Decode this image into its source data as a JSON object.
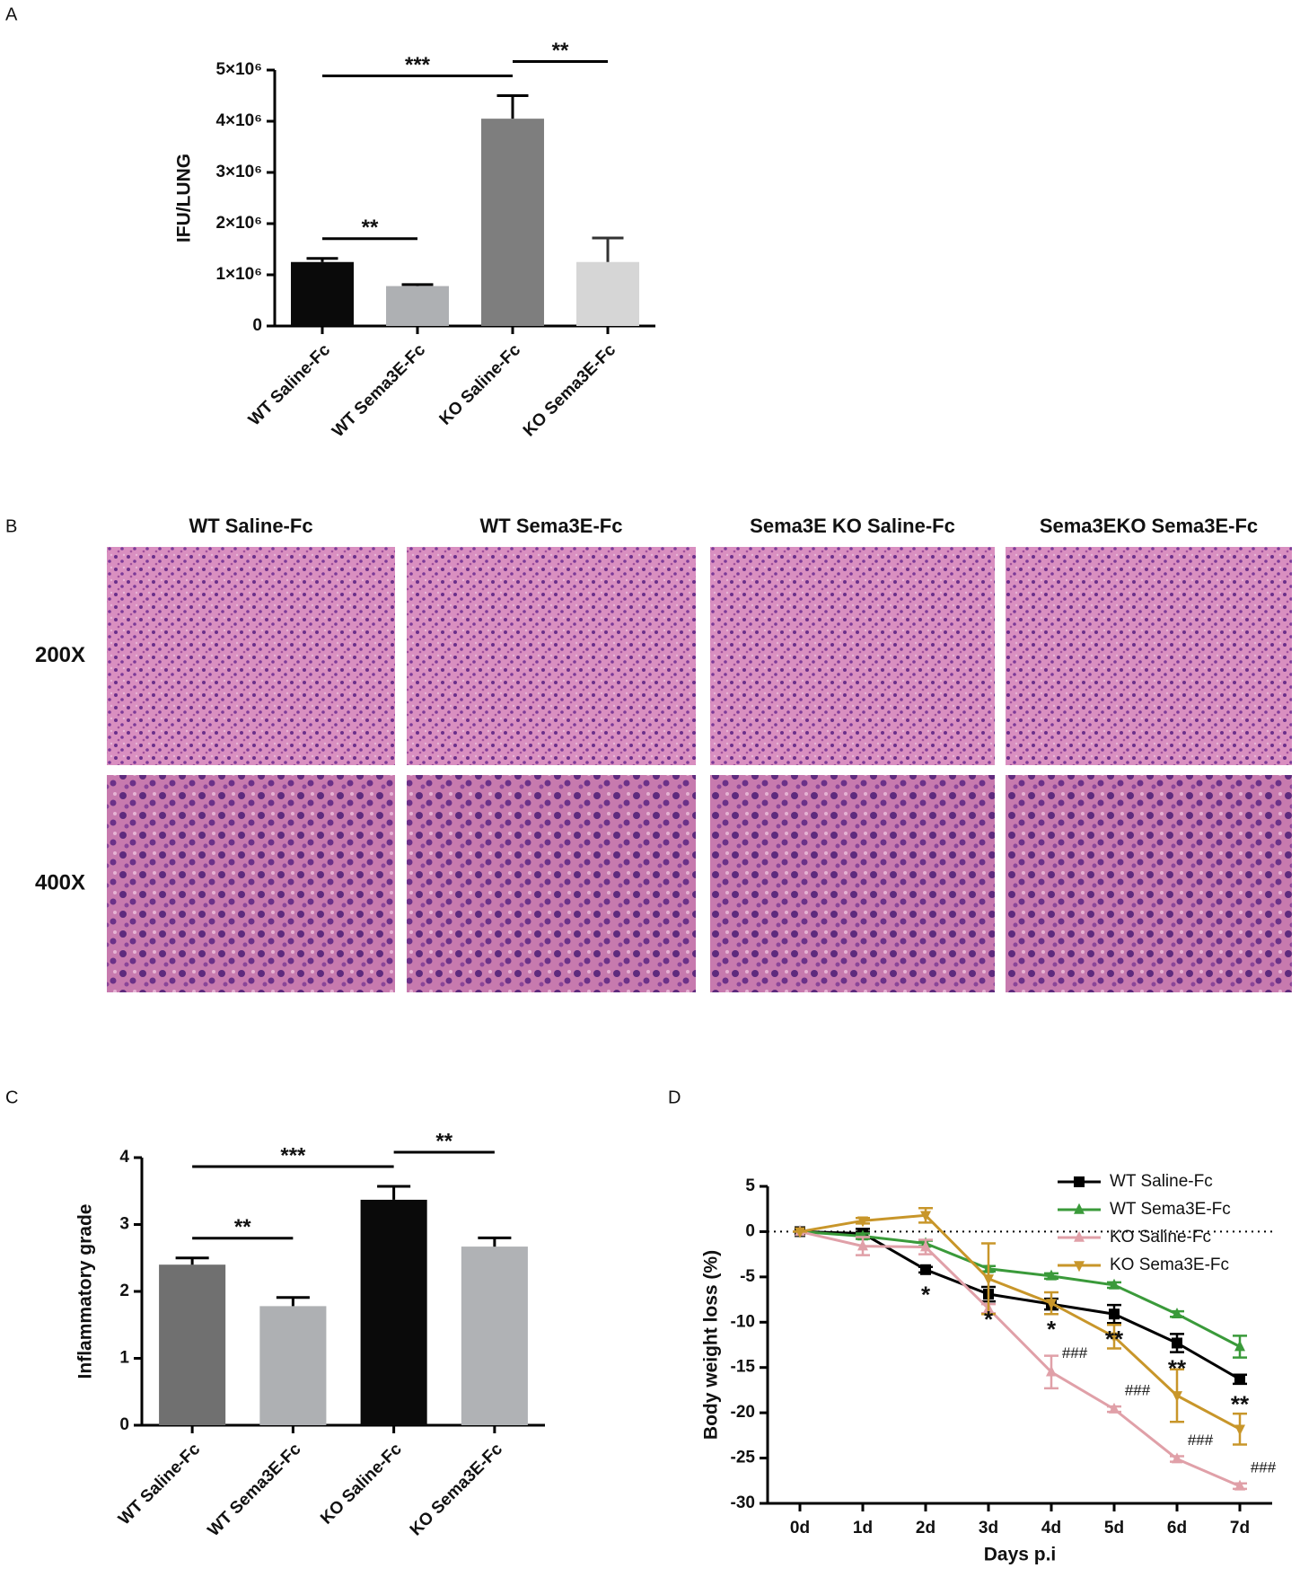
{
  "panels": [
    "A",
    "B",
    "C",
    "D"
  ],
  "histology": {
    "columns": [
      "WT Saline-Fc",
      "WT Sema3E-Fc",
      "Sema3E KO Saline-Fc",
      "Sema3EKO Sema3E-Fc"
    ],
    "rows": [
      "200X",
      "400X"
    ]
  },
  "chart_data": [
    {
      "type": "bar",
      "ylabel": "IFU/LUNG",
      "categories": [
        "WT Saline-Fc",
        "WT Sema3E-Fc",
        "KO Saline-Fc",
        "KO Sema3E-Fc"
      ],
      "values": [
        1250000,
        780000,
        4050000,
        1250000
      ],
      "errors": [
        70000,
        30000,
        450000,
        470000
      ],
      "colors": [
        "#0a0a0a",
        "#aeb0b3",
        "#7e7e7e",
        "#d6d6d6"
      ],
      "ylim": [
        0,
        5000000
      ],
      "yticks": [
        0,
        {
          "value": 1000000,
          "label": "1×10⁶"
        },
        {
          "value": 2000000,
          "label": "2×10⁶"
        },
        {
          "value": 3000000,
          "label": "3×10⁶"
        },
        {
          "value": 4000000,
          "label": "4×10⁶"
        },
        {
          "value": 5000000,
          "label": "5×10⁶"
        }
      ],
      "annotations": [
        {
          "text": "**",
          "from": 0,
          "to": 1
        },
        {
          "text": "***",
          "from": 0,
          "to": 2
        },
        {
          "text": "**",
          "from": 2,
          "to": 3
        }
      ]
    },
    {
      "type": "bar",
      "ylabel": "Inflammatory grade",
      "categories": [
        "WT Saline-Fc",
        "WT Sema3E-Fc",
        "KO Saline-Fc",
        "KO Sema3E-Fc"
      ],
      "values": [
        2.4,
        1.78,
        3.37,
        2.67
      ],
      "errors": [
        0.1,
        0.13,
        0.2,
        0.13
      ],
      "colors": [
        "#707070",
        "#aeb0b3",
        "#0a0a0a",
        "#b0b2b5"
      ],
      "ylim": [
        0,
        4
      ],
      "yticks": [
        0,
        1,
        2,
        3,
        4
      ],
      "annotations": [
        {
          "text": "**",
          "from": 0,
          "to": 1
        },
        {
          "text": "***",
          "from": 0,
          "to": 2
        },
        {
          "text": "**",
          "from": 2,
          "to": 3
        }
      ]
    },
    {
      "type": "line",
      "xlabel": "Days p.i",
      "ylabel": "Body weight loss (%)",
      "categories": [
        "0d",
        "1d",
        "2d",
        "3d",
        "4d",
        "5d",
        "6d",
        "7d"
      ],
      "ylim": [
        -30,
        5
      ],
      "yticks": [
        -30,
        -25,
        -20,
        -15,
        -10,
        -5,
        0,
        5
      ],
      "zero_line": true,
      "legend": "upper right",
      "series": [
        {
          "name": "WT Saline-Fc",
          "color": "#000000",
          "marker": "square",
          "values": [
            0,
            -0.2,
            -4.2,
            -6.9,
            -8.0,
            -9.1,
            -12.3,
            -16.3
          ],
          "errors": [
            0,
            0.5,
            0.3,
            0.8,
            0.6,
            1.0,
            1.0,
            0.5
          ]
        },
        {
          "name": "WT Sema3E-Fc",
          "color": "#3a9a3a",
          "marker": "triangle-up",
          "values": [
            0,
            -0.5,
            -1.3,
            -4.1,
            -4.9,
            -5.9,
            -9.1,
            -12.7
          ],
          "errors": [
            0,
            0.3,
            0.3,
            0.3,
            0.3,
            0.3,
            0.3,
            1.2
          ]
        },
        {
          "name": "KO Saline-Fc",
          "color": "#e0a0a8",
          "marker": "triangle-up",
          "values": [
            0,
            -1.6,
            -1.7,
            -8.5,
            -15.5,
            -19.6,
            -25.1,
            -28.1
          ],
          "errors": [
            0,
            1.0,
            0.8,
            0.5,
            1.8,
            0.3,
            0.3,
            0.3
          ]
        },
        {
          "name": "KO Sema3E-Fc",
          "color": "#c8962a",
          "marker": "triangle-down",
          "values": [
            0,
            1.2,
            1.8,
            -5.2,
            -7.9,
            -11.6,
            -18.1,
            -21.8
          ],
          "errors": [
            0,
            0.3,
            0.8,
            3.9,
            1.2,
            1.3,
            2.9,
            1.7
          ]
        }
      ],
      "annotations": [
        {
          "text": "*",
          "x": 2,
          "series": 0
        },
        {
          "text": "*",
          "x": 3,
          "series": 0
        },
        {
          "text": "*",
          "x": 4,
          "series": 0
        },
        {
          "text": "**",
          "x": 5,
          "series": 0
        },
        {
          "text": "**",
          "x": 6,
          "series": 0
        },
        {
          "text": "**",
          "x": 7,
          "series": 0
        },
        {
          "text": "###",
          "x": 4,
          "series": 2
        },
        {
          "text": "###",
          "x": 5,
          "series": 2
        },
        {
          "text": "###",
          "x": 6,
          "series": 2
        },
        {
          "text": "###",
          "x": 7,
          "series": 2
        }
      ]
    }
  ]
}
